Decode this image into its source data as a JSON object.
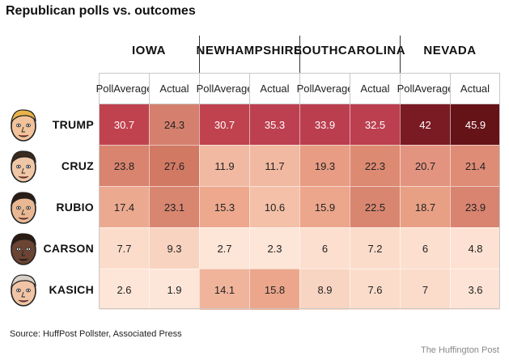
{
  "title": "Republican polls vs. outcomes",
  "source": "Source: HuffPost Pollster, Associated Press",
  "credit": "The Huffington Post",
  "chart_data": {
    "type": "table",
    "title": "Republican polls vs. outcomes",
    "states": [
      {
        "name_lines": [
          "IOWA"
        ]
      },
      {
        "name_lines": [
          "NEW",
          "HAMPSHIRE"
        ]
      },
      {
        "name_lines": [
          "SOUTH",
          "CAROLINA"
        ]
      },
      {
        "name_lines": [
          "NEVADA"
        ]
      }
    ],
    "subheaders": [
      [
        "Poll",
        "Average"
      ],
      [
        "Actual"
      ],
      [
        "Poll",
        "Average"
      ],
      [
        "Actual"
      ],
      [
        "Poll",
        "Average"
      ],
      [
        "Actual"
      ],
      [
        "Poll",
        "Average"
      ],
      [
        "Actual"
      ]
    ],
    "candidates": [
      {
        "name": "TRUMP",
        "values": [
          "30.7",
          "24.3",
          "30.7",
          "35.3",
          "33.9",
          "32.5",
          "42",
          "45.9"
        ],
        "colors": [
          "#c0424f",
          "#d5806e",
          "#c0424f",
          "#bd4050",
          "#bb3e4f",
          "#bc3f50",
          "#7a1a22",
          "#661318"
        ]
      },
      {
        "name": "CRUZ",
        "values": [
          "23.8",
          "27.6",
          "11.9",
          "11.7",
          "19.3",
          "22.3",
          "20.7",
          "21.4"
        ],
        "colors": [
          "#d9846f",
          "#d27964",
          "#f1b9a1",
          "#f1b9a1",
          "#e79c83",
          "#dd8a73",
          "#e39480",
          "#df8c77"
        ]
      },
      {
        "name": "RUBIO",
        "values": [
          "17.4",
          "23.1",
          "15.3",
          "10.6",
          "15.9",
          "22.5",
          "18.7",
          "23.9"
        ],
        "colors": [
          "#eba98f",
          "#d98671",
          "#eda88e",
          "#f4c0a8",
          "#eca68c",
          "#d98671",
          "#e8a085",
          "#d98470"
        ]
      },
      {
        "name": "CARSON",
        "values": [
          "7.7",
          "9.3",
          "2.7",
          "2.3",
          "6",
          "7.2",
          "6",
          "4.8"
        ],
        "colors": [
          "#fbdccb",
          "#f8d3c0",
          "#fde5d7",
          "#fde5d7",
          "#fcdfcf",
          "#fbdccb",
          "#fcdfcf",
          "#fde2d3"
        ]
      },
      {
        "name": "KASICH",
        "values": [
          "2.6",
          "1.9",
          "14.1",
          "15.8",
          "8.9",
          "7.6",
          "7",
          "3.6"
        ],
        "colors": [
          "#fde5d7",
          "#fde6d8",
          "#f0b49b",
          "#eca68c",
          "#f8d5c2",
          "#fbdccb",
          "#fbdccb",
          "#fde3d5"
        ]
      }
    ]
  }
}
